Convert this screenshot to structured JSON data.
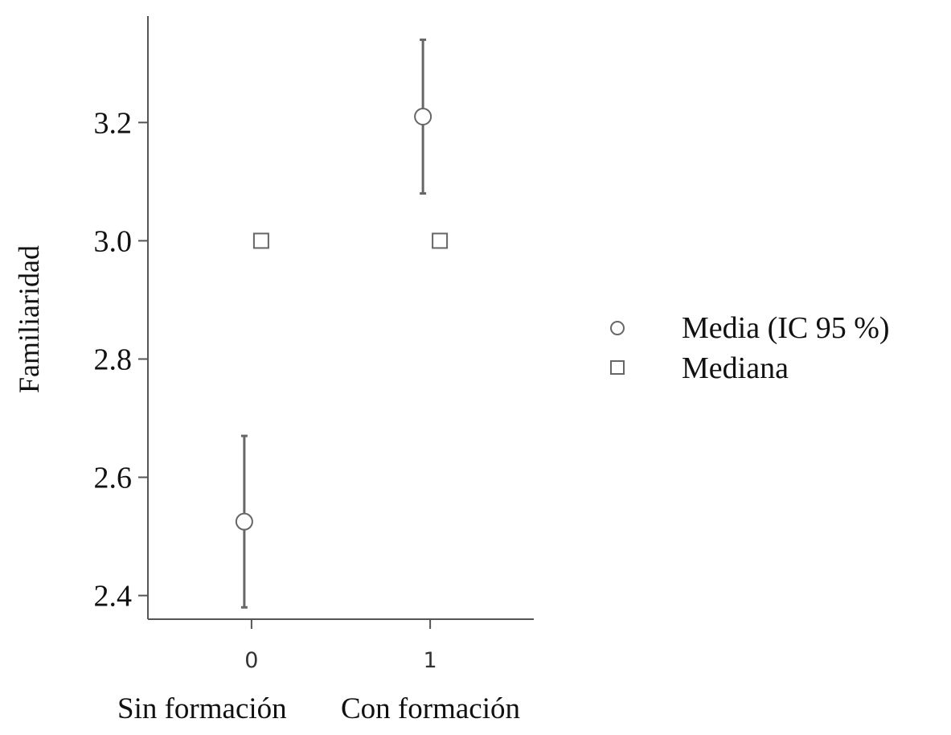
{
  "chart_data": {
    "type": "scatter",
    "ylabel": "Familiaridad",
    "xlabel": "",
    "ylim": [
      2.36,
      3.38
    ],
    "xlim": [
      -0.58,
      1.58
    ],
    "yticks": [
      "2.4",
      "2.6",
      "2.8",
      "3.0",
      "3.2"
    ],
    "x": [
      "0",
      "1"
    ],
    "group_labels": [
      "Sin formación",
      "Con formación"
    ],
    "grid": false,
    "legend_position": "right",
    "series": [
      {
        "name": "Media (IC 95 %)",
        "marker": "circle",
        "values": [
          2.525,
          3.21
        ],
        "ci_low": [
          2.38,
          3.08
        ],
        "ci_high": [
          2.67,
          3.34
        ]
      },
      {
        "name": "Mediana",
        "marker": "square",
        "values": [
          3.0,
          3.0
        ]
      }
    ],
    "colors": {
      "axis": "#555555",
      "marker_stroke": "#666666",
      "errorbar": "#666666",
      "text": "#111111"
    }
  }
}
